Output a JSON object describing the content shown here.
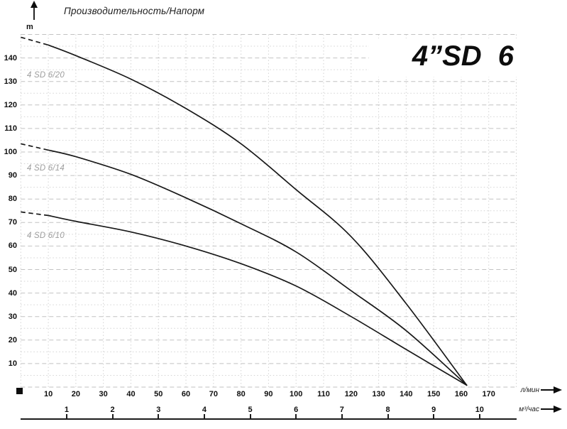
{
  "header": {
    "axis_title": "Производительность/Напорм",
    "y_unit": "m"
  },
  "model_title": "4”SD 6",
  "axes": {
    "y_ticks": [
      10,
      20,
      30,
      40,
      50,
      60,
      70,
      80,
      90,
      100,
      110,
      120,
      130,
      140
    ],
    "x_primary": {
      "unit": "л/мин",
      "ticks": [
        10,
        20,
        30,
        40,
        50,
        60,
        70,
        80,
        90,
        100,
        110,
        120,
        130,
        140,
        150,
        160,
        170
      ]
    },
    "x_secondary": {
      "unit": "м³/час",
      "ticks": [
        1,
        2,
        3,
        4,
        5,
        6,
        7,
        8,
        9,
        10
      ]
    }
  },
  "chart_data": {
    "type": "line",
    "title": "4”SD 6",
    "xlabel": "л/мин (верхняя шкала) / м³/час (нижняя шкала)",
    "ylabel": "m",
    "xlim": [
      0,
      180
    ],
    "ylim": [
      0,
      150
    ],
    "grid": "on",
    "x_grid_step": 10,
    "y_grid_major_step": 10,
    "y_grid_minor_step": 5,
    "legend_position": "labels-on-plot",
    "dashed_segment_below_q": 10,
    "series": [
      {
        "name": "4 SD 6/20",
        "points": [
          [
            0,
            148.8
          ],
          [
            10,
            145.5
          ],
          [
            20,
            141
          ],
          [
            40,
            131
          ],
          [
            60,
            118.5
          ],
          [
            80,
            103.5
          ],
          [
            100,
            84
          ],
          [
            120,
            64
          ],
          [
            140,
            35.5
          ],
          [
            162,
            0.8
          ]
        ]
      },
      {
        "name": "4 SD 6/14",
        "points": [
          [
            0,
            103.5
          ],
          [
            10,
            100.8
          ],
          [
            20,
            98
          ],
          [
            40,
            90.5
          ],
          [
            60,
            80.5
          ],
          [
            80,
            69.5
          ],
          [
            100,
            57.5
          ],
          [
            120,
            41
          ],
          [
            140,
            24
          ],
          [
            162,
            0.8
          ]
        ]
      },
      {
        "name": "4 SD 6/10",
        "points": [
          [
            0,
            74.5
          ],
          [
            10,
            73
          ],
          [
            20,
            70.5
          ],
          [
            40,
            66
          ],
          [
            60,
            60
          ],
          [
            80,
            52.5
          ],
          [
            100,
            43
          ],
          [
            120,
            30
          ],
          [
            140,
            16
          ],
          [
            162,
            0.8
          ]
        ]
      }
    ],
    "colors": {
      "curve": "#191919",
      "grid_major": "#c2c2c2",
      "grid_minor": "#d3d3d3",
      "series_label": "#9d9d9d",
      "text": "#111111"
    }
  }
}
